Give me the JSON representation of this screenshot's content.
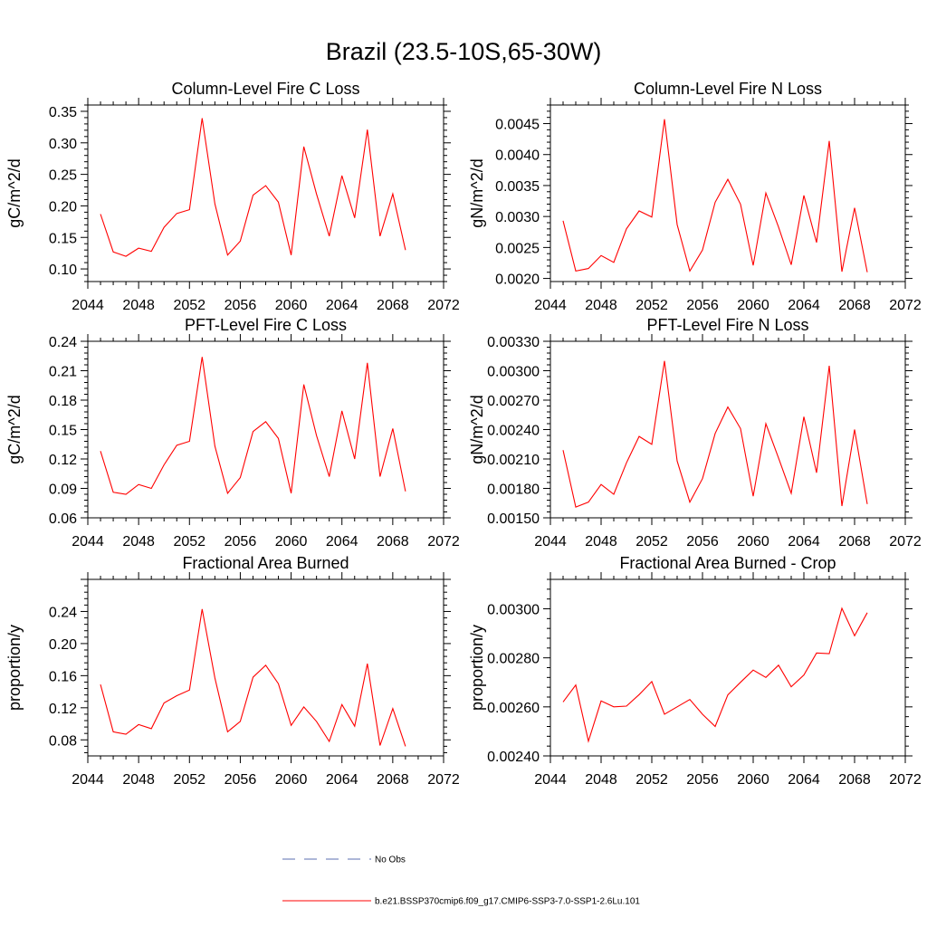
{
  "figure": {
    "title": "Brazil (23.5-10S,65-30W)"
  },
  "legend": {
    "obs_label": "No Obs",
    "obs_color": "#5b6fb0",
    "model_label": "b.e21.BSSP370cmip6.f09_g17.CMIP6-SSP3-7.0-SSP1-2.6Lu.101",
    "model_color": "#ff0000"
  },
  "chart_data": [
    {
      "type": "line",
      "title": "Column-Level Fire C Loss",
      "ylabel": "gC/m^2/d",
      "xlabel": "",
      "xlim": [
        2044,
        2072
      ],
      "ylim": [
        0.08,
        0.36
      ],
      "xticks": [
        "2044",
        "2048",
        "2052",
        "2056",
        "2060",
        "2064",
        "2068",
        "2072"
      ],
      "yticks": [
        "0.10",
        "0.15",
        "0.20",
        "0.25",
        "0.30",
        "0.35"
      ],
      "ytick_values": [
        0.1,
        0.15,
        0.2,
        0.25,
        0.3,
        0.35
      ],
      "ystep": 0.05,
      "x": [
        2045,
        2046,
        2047,
        2048,
        2049,
        2050,
        2051,
        2052,
        2053,
        2054,
        2055,
        2056,
        2057,
        2058,
        2059,
        2060,
        2061,
        2062,
        2063,
        2064,
        2065,
        2066,
        2067,
        2068,
        2069
      ],
      "series": [
        {
          "name": "b.e21.BSSP370cmip6.f09_g17.CMIP6-SSP3-7.0-SSP1-2.6Lu.101",
          "color": "#ff0000",
          "values": [
            0.187,
            0.127,
            0.12,
            0.133,
            0.128,
            0.166,
            0.188,
            0.194,
            0.339,
            0.203,
            0.122,
            0.144,
            0.217,
            0.232,
            0.206,
            0.122,
            0.294,
            0.219,
            0.152,
            0.248,
            0.181,
            0.321,
            0.152,
            0.219,
            0.13
          ]
        }
      ]
    },
    {
      "type": "line",
      "title": "Column-Level Fire N Loss",
      "ylabel": "gN/m^2/d",
      "xlabel": "",
      "xlim": [
        2044,
        2072
      ],
      "ylim": [
        0.00195,
        0.0048
      ],
      "xticks": [
        "2044",
        "2048",
        "2052",
        "2056",
        "2060",
        "2064",
        "2068",
        "2072"
      ],
      "yticks": [
        "0.0020",
        "0.0025",
        "0.0030",
        "0.0035",
        "0.0040",
        "0.0045"
      ],
      "ytick_values": [
        0.002,
        0.0025,
        0.003,
        0.0035,
        0.004,
        0.0045
      ],
      "ystep": 0.0005,
      "x": [
        2045,
        2046,
        2047,
        2048,
        2049,
        2050,
        2051,
        2052,
        2053,
        2054,
        2055,
        2056,
        2057,
        2058,
        2059,
        2060,
        2061,
        2062,
        2063,
        2064,
        2065,
        2066,
        2067,
        2068,
        2069
      ],
      "series": [
        {
          "name": "b.e21.BSSP370cmip6.f09_g17.CMIP6-SSP3-7.0-SSP1-2.6Lu.101",
          "color": "#ff0000",
          "values": [
            0.00293,
            0.00212,
            0.00216,
            0.00237,
            0.00226,
            0.0028,
            0.00309,
            0.00299,
            0.00457,
            0.00287,
            0.00212,
            0.00246,
            0.00323,
            0.0036,
            0.0032,
            0.00221,
            0.00338,
            0.00283,
            0.00222,
            0.00334,
            0.00258,
            0.00422,
            0.00211,
            0.00314,
            0.0021
          ]
        }
      ]
    },
    {
      "type": "line",
      "title": "PFT-Level Fire C Loss",
      "ylabel": "gC/m^2/d",
      "xlabel": "",
      "xlim": [
        2044,
        2072
      ],
      "ylim": [
        0.06,
        0.24
      ],
      "xticks": [
        "2044",
        "2048",
        "2052",
        "2056",
        "2060",
        "2064",
        "2068",
        "2072"
      ],
      "yticks": [
        "0.06",
        "0.09",
        "0.12",
        "0.15",
        "0.18",
        "0.21",
        "0.24"
      ],
      "ytick_values": [
        0.06,
        0.09,
        0.12,
        0.15,
        0.18,
        0.21,
        0.24
      ],
      "ystep": 0.03,
      "x": [
        2045,
        2046,
        2047,
        2048,
        2049,
        2050,
        2051,
        2052,
        2053,
        2054,
        2055,
        2056,
        2057,
        2058,
        2059,
        2060,
        2061,
        2062,
        2063,
        2064,
        2065,
        2066,
        2067,
        2068,
        2069
      ],
      "series": [
        {
          "name": "b.e21.BSSP370cmip6.f09_g17.CMIP6-SSP3-7.0-SSP1-2.6Lu.101",
          "color": "#ff0000",
          "values": [
            0.128,
            0.086,
            0.084,
            0.094,
            0.09,
            0.114,
            0.134,
            0.138,
            0.224,
            0.133,
            0.085,
            0.101,
            0.148,
            0.158,
            0.141,
            0.085,
            0.196,
            0.144,
            0.102,
            0.169,
            0.12,
            0.218,
            0.102,
            0.151,
            0.087
          ]
        }
      ]
    },
    {
      "type": "line",
      "title": "PFT-Level Fire N Loss",
      "ylabel": "gN/m^2/d",
      "xlabel": "",
      "xlim": [
        2044,
        2072
      ],
      "ylim": [
        0.0015,
        0.0033
      ],
      "xticks": [
        "2044",
        "2048",
        "2052",
        "2056",
        "2060",
        "2064",
        "2068",
        "2072"
      ],
      "yticks": [
        "0.00150",
        "0.00180",
        "0.00210",
        "0.00240",
        "0.00270",
        "0.00300",
        "0.00330"
      ],
      "ytick_values": [
        0.0015,
        0.0018,
        0.0021,
        0.0024,
        0.0027,
        0.003,
        0.0033
      ],
      "ystep": 0.0003,
      "x": [
        2045,
        2046,
        2047,
        2048,
        2049,
        2050,
        2051,
        2052,
        2053,
        2054,
        2055,
        2056,
        2057,
        2058,
        2059,
        2060,
        2061,
        2062,
        2063,
        2064,
        2065,
        2066,
        2067,
        2068,
        2069
      ],
      "series": [
        {
          "name": "b.e21.BSSP370cmip6.f09_g17.CMIP6-SSP3-7.0-SSP1-2.6Lu.101",
          "color": "#ff0000",
          "values": [
            0.00219,
            0.00161,
            0.00166,
            0.00184,
            0.00174,
            0.00206,
            0.00233,
            0.00225,
            0.0031,
            0.00208,
            0.00166,
            0.0019,
            0.00236,
            0.00263,
            0.00241,
            0.00172,
            0.00246,
            0.00211,
            0.00175,
            0.00253,
            0.00196,
            0.00305,
            0.00162,
            0.0024,
            0.00164
          ]
        }
      ]
    },
    {
      "type": "line",
      "title": "Fractional Area Burned",
      "ylabel": "proportion/y",
      "xlabel": "",
      "xlim": [
        2044,
        2072
      ],
      "ylim": [
        0.06,
        0.28
      ],
      "xticks": [
        "2044",
        "2048",
        "2052",
        "2056",
        "2060",
        "2064",
        "2068",
        "2072"
      ],
      "yticks": [
        "0.08",
        "0.12",
        "0.16",
        "0.20",
        "0.24"
      ],
      "ytick_values": [
        0.08,
        0.12,
        0.16,
        0.2,
        0.24
      ],
      "ystep": 0.04,
      "x": [
        2045,
        2046,
        2047,
        2048,
        2049,
        2050,
        2051,
        2052,
        2053,
        2054,
        2055,
        2056,
        2057,
        2058,
        2059,
        2060,
        2061,
        2062,
        2063,
        2064,
        2065,
        2066,
        2067,
        2068,
        2069
      ],
      "series": [
        {
          "name": "b.e21.BSSP370cmip6.f09_g17.CMIP6-SSP3-7.0-SSP1-2.6Lu.101",
          "color": "#ff0000",
          "values": [
            0.149,
            0.09,
            0.087,
            0.099,
            0.094,
            0.126,
            0.135,
            0.142,
            0.243,
            0.157,
            0.09,
            0.103,
            0.158,
            0.173,
            0.15,
            0.098,
            0.121,
            0.103,
            0.078,
            0.124,
            0.097,
            0.175,
            0.073,
            0.119,
            0.072
          ]
        }
      ]
    },
    {
      "type": "line",
      "title": "Fractional Area Burned - Crop",
      "ylabel": "proportion/y",
      "xlabel": "",
      "xlim": [
        2044,
        2072
      ],
      "ylim": [
        0.0024,
        0.00312
      ],
      "xticks": [
        "2044",
        "2048",
        "2052",
        "2056",
        "2060",
        "2064",
        "2068",
        "2072"
      ],
      "yticks": [
        "0.00240",
        "0.00260",
        "0.00280",
        "0.00300"
      ],
      "ytick_values": [
        0.0024,
        0.0026,
        0.0028,
        0.003
      ],
      "ystep": 0.0002,
      "x": [
        2045,
        2046,
        2047,
        2048,
        2049,
        2050,
        2051,
        2052,
        2053,
        2054,
        2055,
        2056,
        2057,
        2058,
        2059,
        2060,
        2061,
        2062,
        2063,
        2064,
        2065,
        2066,
        2067,
        2068,
        2069
      ],
      "series": [
        {
          "name": "b.e21.BSSP370cmip6.f09_g17.CMIP6-SSP3-7.0-SSP1-2.6Lu.101",
          "color": "#ff0000",
          "values": [
            0.00262,
            0.002689,
            0.00246,
            0.002624,
            0.0026,
            0.002603,
            0.00265,
            0.002703,
            0.00257,
            0.0026,
            0.00263,
            0.00257,
            0.00252,
            0.002649,
            0.0027,
            0.00275,
            0.00272,
            0.00277,
            0.002682,
            0.00273,
            0.00282,
            0.002817,
            0.003002,
            0.00289,
            0.002984
          ]
        }
      ]
    }
  ]
}
